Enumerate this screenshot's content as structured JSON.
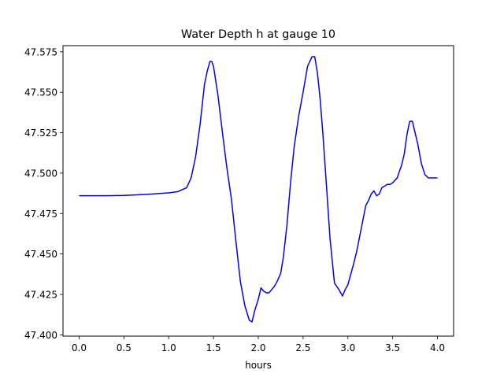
{
  "chart_data": {
    "type": "line",
    "title": "Water Depth h at gauge 10",
    "xlabel": "hours",
    "ylabel": "",
    "xlim": [
      -0.18,
      4.18
    ],
    "ylim": [
      47.3992,
      47.5788
    ],
    "xticks": [
      0.0,
      0.5,
      1.0,
      1.5,
      2.0,
      2.5,
      3.0,
      3.5,
      4.0
    ],
    "xtick_labels": [
      "0.0",
      "0.5",
      "1.0",
      "1.5",
      "2.0",
      "2.5",
      "3.0",
      "3.5",
      "4.0"
    ],
    "yticks": [
      47.4,
      47.425,
      47.45,
      47.475,
      47.5,
      47.525,
      47.55,
      47.575
    ],
    "ytick_labels": [
      "47.400",
      "47.425",
      "47.450",
      "47.475",
      "47.500",
      "47.525",
      "47.550",
      "47.575"
    ],
    "grid": false,
    "series": [
      {
        "color": "#0000ff",
        "x": [
          0.0,
          0.3,
          0.5,
          0.75,
          1.0,
          1.1,
          1.2,
          1.25,
          1.3,
          1.35,
          1.4,
          1.43,
          1.46,
          1.48,
          1.5,
          1.55,
          1.6,
          1.65,
          1.7,
          1.75,
          1.8,
          1.85,
          1.9,
          1.93,
          1.96,
          2.0,
          2.03,
          2.06,
          2.09,
          2.12,
          2.15,
          2.18,
          2.21,
          2.25,
          2.28,
          2.32,
          2.36,
          2.4,
          2.45,
          2.5,
          2.55,
          2.6,
          2.63,
          2.66,
          2.69,
          2.72,
          2.76,
          2.8,
          2.85,
          2.9,
          2.94,
          2.97,
          3.0,
          3.03,
          3.06,
          3.1,
          3.15,
          3.2,
          3.23,
          3.26,
          3.29,
          3.32,
          3.35,
          3.38,
          3.41,
          3.44,
          3.47,
          3.5,
          3.55,
          3.6,
          3.63,
          3.66,
          3.69,
          3.72,
          3.75,
          3.78,
          3.82,
          3.86,
          3.9,
          3.94,
          3.97,
          4.0
        ],
        "y": [
          47.486,
          47.486,
          47.4862,
          47.4868,
          47.4878,
          47.4885,
          47.491,
          47.497,
          47.51,
          47.53,
          47.555,
          47.563,
          47.569,
          47.569,
          47.566,
          47.548,
          47.525,
          47.503,
          47.484,
          47.458,
          47.433,
          47.418,
          47.409,
          47.408,
          47.415,
          47.422,
          47.429,
          47.427,
          47.426,
          47.426,
          47.428,
          47.43,
          47.433,
          47.438,
          47.448,
          47.468,
          47.494,
          47.516,
          47.535,
          47.55,
          47.566,
          47.572,
          47.572,
          47.562,
          47.546,
          47.525,
          47.493,
          47.46,
          47.432,
          47.428,
          47.424,
          47.428,
          47.431,
          47.437,
          47.443,
          47.452,
          47.466,
          47.48,
          47.483,
          47.487,
          47.489,
          47.486,
          47.487,
          47.491,
          47.492,
          47.493,
          47.493,
          47.494,
          47.497,
          47.505,
          47.512,
          47.524,
          47.532,
          47.532,
          47.525,
          47.518,
          47.506,
          47.499,
          47.497,
          47.497,
          47.497,
          47.497
        ]
      }
    ]
  }
}
